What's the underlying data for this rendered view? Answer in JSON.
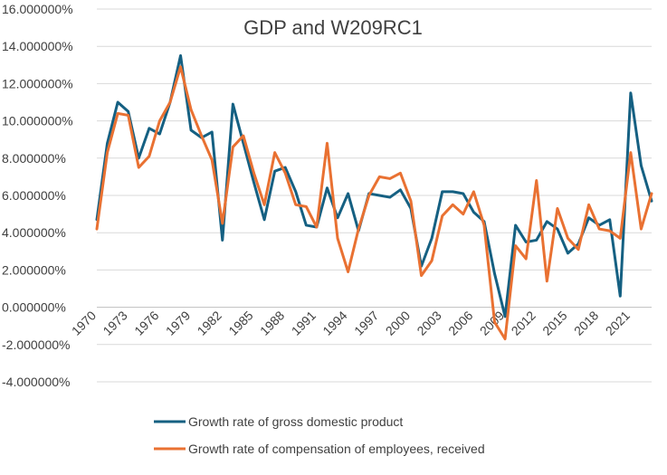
{
  "chart_data": {
    "type": "line",
    "title": "GDP and W209RC1",
    "xlabel": "",
    "ylabel": "",
    "ylim": [
      -4,
      16
    ],
    "ytick_step": 2,
    "y_tick_labels": [
      "-4.000000%",
      "-2.000000%",
      "0.000000%",
      "2.000000%",
      "4.000000%",
      "6.000000%",
      "8.000000%",
      "10.000000%",
      "12.000000%",
      "14.000000%",
      "16.000000%"
    ],
    "x": [
      1970,
      1971,
      1972,
      1973,
      1974,
      1975,
      1976,
      1977,
      1978,
      1979,
      1980,
      1981,
      1982,
      1983,
      1984,
      1985,
      1986,
      1987,
      1988,
      1989,
      1990,
      1991,
      1992,
      1993,
      1994,
      1995,
      1996,
      1997,
      1998,
      1999,
      2000,
      2001,
      2002,
      2003,
      2004,
      2005,
      2006,
      2007,
      2008,
      2009,
      2010,
      2011,
      2012,
      2013,
      2014,
      2015,
      2016,
      2017,
      2018,
      2019,
      2020,
      2021,
      2022,
      2023
    ],
    "x_tick_labels": [
      "1970",
      "1973",
      "1976",
      "1979",
      "1982",
      "1985",
      "1988",
      "1991",
      "1994",
      "1997",
      "2000",
      "2003",
      "2006",
      "2009",
      "2012",
      "2015",
      "2018",
      "2021"
    ],
    "grid": true,
    "legend_position": "bottom",
    "series": [
      {
        "name": "Growth rate of gross domestic product",
        "color": "#156082",
        "values": [
          4.7,
          8.8,
          11.0,
          10.5,
          8.0,
          9.6,
          9.3,
          11.0,
          13.5,
          9.5,
          9.1,
          9.4,
          3.6,
          10.9,
          8.8,
          6.7,
          4.7,
          7.3,
          7.5,
          6.2,
          4.4,
          4.3,
          6.4,
          4.8,
          6.1,
          4.1,
          6.1,
          6.0,
          5.9,
          6.3,
          5.3,
          2.2,
          3.7,
          6.2,
          6.2,
          6.1,
          5.1,
          4.6,
          1.8,
          -0.5,
          4.4,
          3.5,
          3.6,
          4.6,
          4.2,
          2.9,
          3.4,
          4.8,
          4.4,
          4.7,
          0.6,
          11.5,
          7.6,
          5.7
        ]
      },
      {
        "name": "Growth rate of compensation of employees, received",
        "color": "#e97132",
        "values": [
          4.2,
          8.3,
          10.4,
          10.3,
          7.5,
          8.1,
          10.0,
          11.0,
          12.9,
          10.6,
          9.2,
          7.9,
          4.5,
          8.6,
          9.2,
          7.2,
          5.5,
          8.3,
          7.2,
          5.5,
          5.4,
          4.3,
          8.8,
          3.7,
          1.9,
          4.2,
          6.0,
          7.0,
          6.9,
          7.2,
          5.7,
          1.7,
          2.5,
          4.9,
          5.5,
          5.0,
          6.2,
          4.4,
          -0.8,
          -1.7,
          3.3,
          2.6,
          6.8,
          1.4,
          5.3,
          3.7,
          3.1,
          5.5,
          4.2,
          4.1,
          3.7,
          8.3,
          4.2,
          6.1
        ]
      }
    ]
  }
}
